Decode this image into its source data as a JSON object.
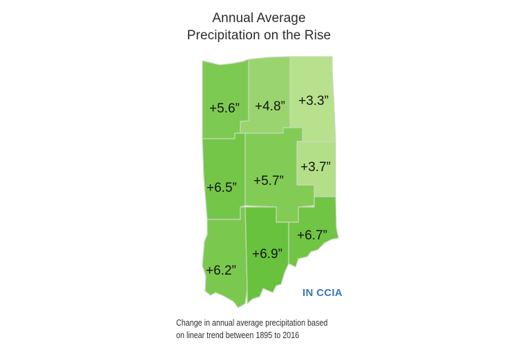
{
  "title": {
    "line1": "Annual Average",
    "line2": "Precipitation on the Rise"
  },
  "regions": [
    {
      "id": "northwest",
      "label": "+5.6”",
      "value": 5.6,
      "color": "#7dca52"
    },
    {
      "id": "north-central",
      "label": "+4.8”",
      "value": 4.8,
      "color": "#9ad46e"
    },
    {
      "id": "northeast",
      "label": "+3.3”",
      "value": 3.3,
      "color": "#b7e18c"
    },
    {
      "id": "west-central",
      "label": "+6.5”",
      "value": 6.5,
      "color": "#74c649"
    },
    {
      "id": "central",
      "label": "+5.7”",
      "value": 5.7,
      "color": "#82cc55"
    },
    {
      "id": "east-central",
      "label": "+3.7”",
      "value": 3.7,
      "color": "#b4df89"
    },
    {
      "id": "southwest",
      "label": "+6.2”",
      "value": 6.2,
      "color": "#7bc84f"
    },
    {
      "id": "south-central",
      "label": "+6.9”",
      "value": 6.9,
      "color": "#69c23d"
    },
    {
      "id": "southeast",
      "label": "+6.7”",
      "value": 6.7,
      "color": "#71c545"
    }
  ],
  "logo": "IN CCIA",
  "caption": {
    "line1": "Change in annual average precipitation based",
    "line2": "on linear trend between 1895 to 2016"
  }
}
